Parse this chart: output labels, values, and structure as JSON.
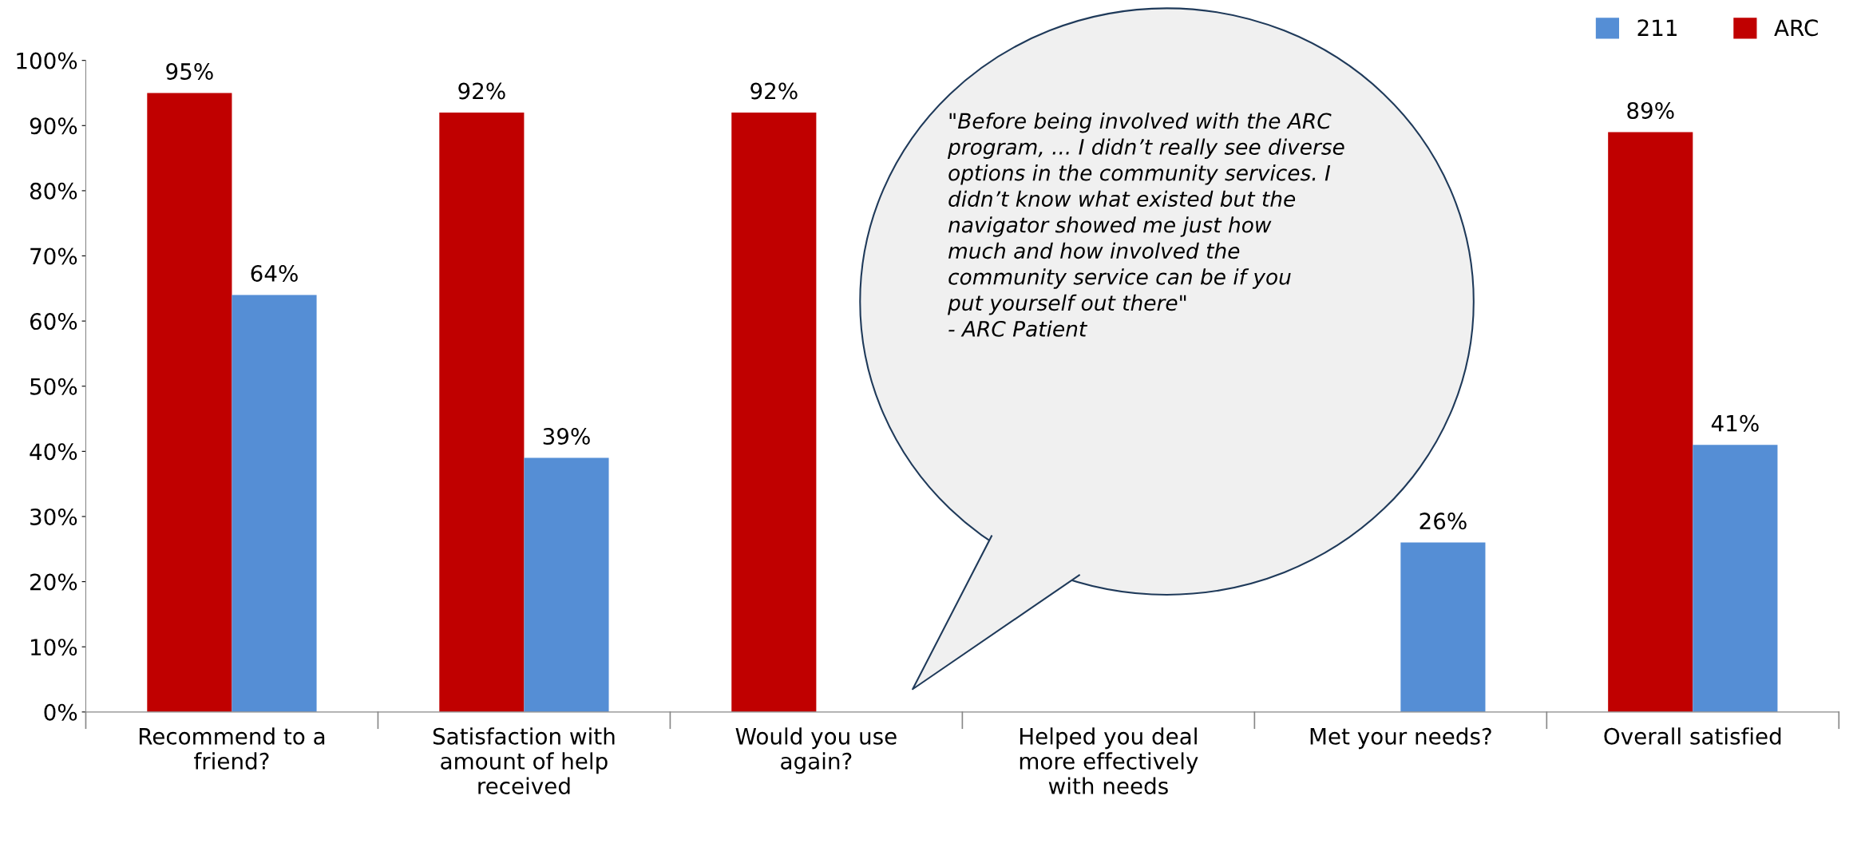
{
  "chart_data": {
    "type": "bar",
    "categories": [
      "Recommend to a friend?",
      "Satisfaction with amount of help received",
      "Would you use again?",
      "Helped you deal more effectively with needs",
      "Met your needs?",
      "Overall satisfied"
    ],
    "series": [
      {
        "name": "ARC",
        "color": "#c00000",
        "values": [
          95,
          92,
          92,
          null,
          null,
          89
        ],
        "value_labels": [
          "95%",
          "92%",
          "92%",
          null,
          null,
          "89%"
        ]
      },
      {
        "name": "211",
        "color": "#558ed5",
        "values": [
          64,
          39,
          null,
          null,
          26,
          41
        ],
        "value_labels": [
          "64%",
          "39%",
          null,
          null,
          "26%",
          "41%"
        ]
      }
    ],
    "ylim": [
      0,
      100
    ],
    "yticks": [
      {
        "value": 0,
        "label": "0%"
      },
      {
        "value": 10,
        "label": "10%"
      },
      {
        "value": 20,
        "label": "20%"
      },
      {
        "value": 30,
        "label": "30%"
      },
      {
        "value": 40,
        "label": "40%"
      },
      {
        "value": 50,
        "label": "50%"
      },
      {
        "value": 60,
        "label": "60%"
      },
      {
        "value": 70,
        "label": "70%"
      },
      {
        "value": 80,
        "label": "80%"
      },
      {
        "value": 90,
        "label": "90%"
      },
      {
        "value": 100,
        "label": "100%"
      }
    ],
    "grid": false,
    "legend": "top right",
    "annotations": [
      "\"Before being involved with the ARC\nprogram, ... I didn’t really see diverse\noptions in the community services. I\ndidn’t know what existed but the\nnavigator showed me just how\nmuch and how involved the\ncommunity service can be if you\nput yourself out there\"\n- ARC Patient"
    ]
  }
}
